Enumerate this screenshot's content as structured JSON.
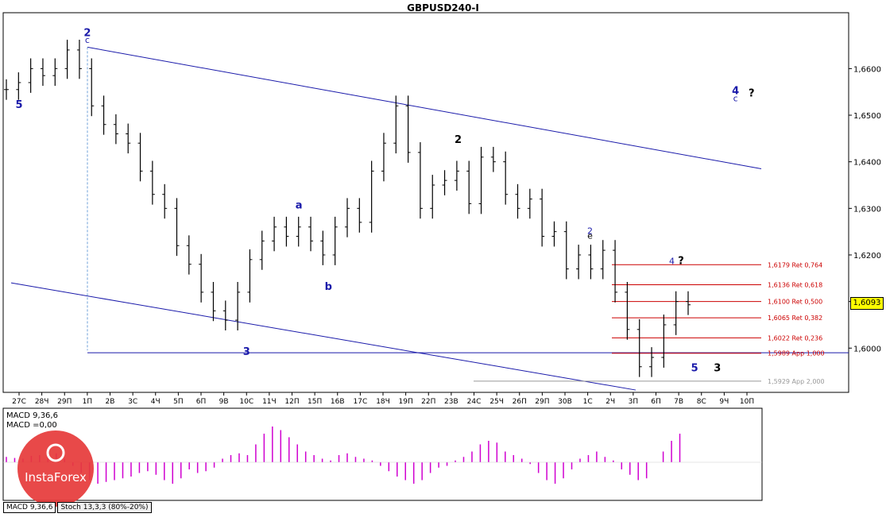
{
  "title": "GBPUSD240-I",
  "chart_data": [
    {
      "type": "candlestick",
      "title": "GBPUSD240-I",
      "ylim": [
        1.5905,
        1.672
      ],
      "y_ticks": [
        "1,6600",
        "1,6500",
        "1,6400",
        "1,6300",
        "1,6200",
        "1,6100",
        "1,6000"
      ],
      "y_tick_values": [
        1.66,
        1.65,
        1.64,
        1.63,
        1.62,
        1.61,
        1.6
      ],
      "x_ticks": [
        "27С",
        "28Ч",
        "29П",
        "1П",
        "2В",
        "3С",
        "4Ч",
        "5П",
        "6П",
        "9В",
        "10С",
        "11Ч",
        "12П",
        "15П",
        "16В",
        "17С",
        "18Ч",
        "19П",
        "22П",
        "23В",
        "24С",
        "25Ч",
        "26П",
        "29П",
        "30В",
        "1С",
        "2Ч",
        "3П",
        "6П",
        "7В",
        "8С",
        "9Ч",
        "10П"
      ],
      "current_price": "1,6093",
      "close_series": [
        1.6555,
        1.657,
        1.66,
        1.6585,
        1.66,
        1.664,
        1.66,
        1.652,
        1.648,
        1.646,
        1.644,
        1.638,
        1.633,
        1.63,
        1.622,
        1.618,
        1.612,
        1.608,
        1.606,
        1.612,
        1.619,
        1.623,
        1.626,
        1.624,
        1.626,
        1.623,
        1.62,
        1.626,
        1.63,
        1.627,
        1.638,
        1.644,
        1.652,
        1.642,
        1.63,
        1.635,
        1.636,
        1.638,
        1.631,
        1.641,
        1.64,
        1.633,
        1.63,
        1.632,
        1.624,
        1.625,
        1.617,
        1.62,
        1.617,
        1.621,
        1.612,
        1.604,
        1.596,
        1.598,
        1.605,
        1.61,
        1.6093
      ],
      "fib_levels": [
        {
          "label": "1,6179 Ret 0,764",
          "value": 1.6179,
          "color": "#cc0000"
        },
        {
          "label": "1,6136 Ret 0,618",
          "value": 1.6136,
          "color": "#cc0000"
        },
        {
          "label": "1,6100 Ret 0,500",
          "value": 1.61,
          "color": "#cc0000"
        },
        {
          "label": "1,6065 Ret 0,382",
          "value": 1.6065,
          "color": "#cc0000"
        },
        {
          "label": "1,6022 Ret 0,236",
          "value": 1.6022,
          "color": "#cc0000"
        },
        {
          "label": "1,5989 App 1,000",
          "value": 1.5989,
          "color": "#cc0000"
        },
        {
          "label": "1,5929 App 2,000",
          "value": 1.5929,
          "color": "#999999"
        }
      ],
      "wave_labels": [
        {
          "t": "2",
          "x": 3,
          "y": 1.667,
          "color": "#1a1aaa",
          "bold": true
        },
        {
          "t": "c",
          "x": 3,
          "y": 1.6655,
          "color": "#1a1aaa",
          "bold": false
        },
        {
          "t": "4",
          "x": 31.5,
          "y": 1.6545,
          "color": "#1a1aaa",
          "bold": true
        },
        {
          "t": "c",
          "x": 31.5,
          "y": 1.653,
          "color": "#1a1aaa",
          "bold": false
        },
        {
          "t": "?",
          "x": 32.2,
          "y": 1.654,
          "color": "#000000",
          "bold": true
        },
        {
          "t": "3",
          "x": 10,
          "y": 1.5985,
          "color": "#1a1aaa",
          "bold": true
        },
        {
          "t": "5",
          "x": 29.7,
          "y": 1.595,
          "color": "#1a1aaa",
          "bold": true
        },
        {
          "t": "3",
          "x": 30.7,
          "y": 1.595,
          "color": "#000000",
          "bold": true
        },
        {
          "t": "4",
          "x": 28.7,
          "y": 1.618,
          "color": "#1a1aaa",
          "bold": false
        },
        {
          "t": "?",
          "x": 29.1,
          "y": 1.618,
          "color": "#000000",
          "bold": true
        },
        {
          "t": "2",
          "x": 19.3,
          "y": 1.644,
          "color": "#000000",
          "bold": true
        },
        {
          "t": "2",
          "x": 25.1,
          "y": 1.6245,
          "color": "#1a1aaa",
          "bold": false
        },
        {
          "t": "e",
          "x": 25.1,
          "y": 1.6235,
          "color": "#000000",
          "bold": false
        },
        {
          "t": "a",
          "x": 12.3,
          "y": 1.63,
          "color": "#1a1aaa",
          "bold": true
        },
        {
          "t": "b",
          "x": 13.6,
          "y": 1.6125,
          "color": "#1a1aaa",
          "bold": true
        },
        {
          "t": "5",
          "x": 0,
          "y": 1.6515,
          "color": "#1a1aaa",
          "bold": true
        }
      ],
      "macd": {
        "label": "MACD 9,36,6",
        "value_label": "MACD =0,00",
        "histogram": [
          0.15,
          0.12,
          0.1,
          0.18,
          0.2,
          0.3,
          0.25,
          0.1,
          -0.1,
          -0.3,
          -0.5,
          -0.6,
          -0.55,
          -0.5,
          -0.45,
          -0.4,
          -0.3,
          -0.25,
          -0.35,
          -0.5,
          -0.6,
          -0.45,
          -0.2,
          -0.3,
          -0.25,
          -0.15,
          0.1,
          0.2,
          0.25,
          0.2,
          0.5,
          0.8,
          1.0,
          0.9,
          0.7,
          0.5,
          0.3,
          0.2,
          0.1,
          0.05,
          0.2,
          0.25,
          0.15,
          0.1,
          0.05,
          -0.1,
          -0.25,
          -0.4,
          -0.5,
          -0.6,
          -0.5,
          -0.3,
          -0.15,
          -0.1,
          0.05,
          0.15,
          0.3,
          0.5,
          0.6,
          0.55,
          0.3,
          0.2,
          0.1,
          -0.05,
          -0.3,
          -0.5,
          -0.6,
          -0.45,
          -0.2,
          0.1,
          0.2,
          0.3,
          0.15,
          0.05,
          -0.2,
          -0.35,
          -0.5,
          -0.45,
          0.0,
          0.3,
          0.6,
          0.8
        ]
      }
    }
  ],
  "tabs": [
    "MACD 9,36,6",
    "Stoch 13,3,3 (80%-20%)"
  ],
  "logo_text": "InstaForex"
}
